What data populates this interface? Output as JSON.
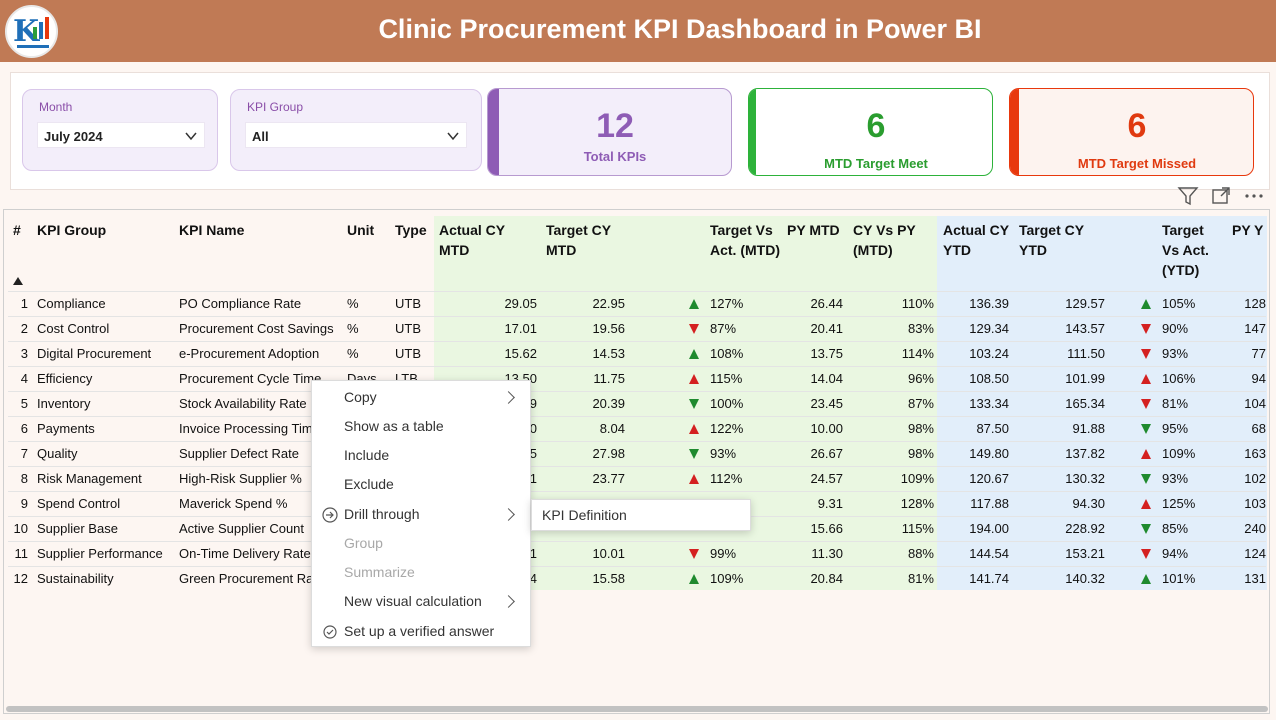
{
  "header": {
    "title": "Clinic Procurement KPI Dashboard in Power BI"
  },
  "slicers": [
    {
      "label": "Month",
      "value": "July 2024"
    },
    {
      "label": "KPI Group",
      "value": "All"
    }
  ],
  "cards": [
    {
      "value": "12",
      "label": "Total KPIs",
      "accent": "#8e5cb5"
    },
    {
      "value": "6",
      "label": "MTD Target Meet",
      "accent": "#2db23a"
    },
    {
      "value": "6",
      "label": "MTD Target Missed",
      "accent": "#e8380d"
    }
  ],
  "table": {
    "columns": [
      "#",
      "KPI Group",
      "KPI Name",
      "Unit",
      "Type",
      "Actual CY MTD",
      "Target CY MTD",
      "Target Vs Act. (MTD)",
      "PY MTD",
      "CY Vs PY (MTD)",
      "Actual CY YTD",
      "Target CY YTD",
      "Target Vs Act. (YTD)",
      "PY Y"
    ],
    "rows": [
      {
        "n": "1",
        "group": "Compliance",
        "name": "PO Compliance Rate",
        "unit": "%",
        "type": "UTB",
        "acm": "29.05",
        "tcm": "22.95",
        "mdir": "up",
        "mcol": "green",
        "tam": "127%",
        "pym": "26.44",
        "cvp": "110%",
        "acy": "136.39",
        "tcy": "129.57",
        "ydir": "up",
        "ycol": "green",
        "tay": "105%",
        "pyy": "128"
      },
      {
        "n": "2",
        "group": "Cost Control",
        "name": "Procurement Cost Savings",
        "unit": "%",
        "type": "UTB",
        "acm": "17.01",
        "tcm": "19.56",
        "mdir": "down",
        "mcol": "red",
        "tam": "87%",
        "pym": "20.41",
        "cvp": "83%",
        "acy": "129.34",
        "tcy": "143.57",
        "ydir": "down",
        "ycol": "red",
        "tay": "90%",
        "pyy": "147"
      },
      {
        "n": "3",
        "group": "Digital Procurement",
        "name": "e-Procurement Adoption",
        "unit": "%",
        "type": "UTB",
        "acm": "15.62",
        "tcm": "14.53",
        "mdir": "up",
        "mcol": "green",
        "tam": "108%",
        "pym": "13.75",
        "cvp": "114%",
        "acy": "103.24",
        "tcy": "111.50",
        "ydir": "down",
        "ycol": "red",
        "tay": "93%",
        "pyy": "77"
      },
      {
        "n": "4",
        "group": "Efficiency",
        "name": "Procurement Cycle Time",
        "unit": "Days",
        "type": "LTB",
        "acm": "13.50",
        "tcm": "11.75",
        "mdir": "up",
        "mcol": "red",
        "tam": "115%",
        "pym": "14.04",
        "cvp": "96%",
        "acy": "108.50",
        "tcy": "101.99",
        "ydir": "up",
        "ycol": "red",
        "tay": "106%",
        "pyy": "94"
      },
      {
        "n": "5",
        "group": "Inventory",
        "name": "Stock Availability Rate",
        "unit": "",
        "type": "",
        "acm": "9",
        "tcm": "20.39",
        "mdir": "down",
        "mcol": "green",
        "tam": "100%",
        "pym": "23.45",
        "cvp": "87%",
        "acy": "133.34",
        "tcy": "165.34",
        "ydir": "down",
        "ycol": "red",
        "tay": "81%",
        "pyy": "104"
      },
      {
        "n": "6",
        "group": "Payments",
        "name": "Invoice Processing Tim",
        "unit": "",
        "type": "",
        "acm": "0",
        "tcm": "8.04",
        "mdir": "up",
        "mcol": "red",
        "tam": "122%",
        "pym": "10.00",
        "cvp": "98%",
        "acy": "87.50",
        "tcy": "91.88",
        "ydir": "down",
        "ycol": "green",
        "tay": "95%",
        "pyy": "68"
      },
      {
        "n": "7",
        "group": "Quality",
        "name": "Supplier Defect Rate",
        "unit": "",
        "type": "",
        "acm": "5",
        "tcm": "27.98",
        "mdir": "down",
        "mcol": "green",
        "tam": "93%",
        "pym": "26.67",
        "cvp": "98%",
        "acy": "149.80",
        "tcy": "137.82",
        "ydir": "up",
        "ycol": "red",
        "tay": "109%",
        "pyy": "163"
      },
      {
        "n": "8",
        "group": "Risk Management",
        "name": "High-Risk Supplier %",
        "unit": "",
        "type": "",
        "acm": "1",
        "tcm": "23.77",
        "mdir": "up",
        "mcol": "red",
        "tam": "112%",
        "pym": "24.57",
        "cvp": "109%",
        "acy": "120.67",
        "tcy": "130.32",
        "ydir": "down",
        "ycol": "green",
        "tay": "93%",
        "pyy": "102"
      },
      {
        "n": "9",
        "group": "Spend Control",
        "name": "Maverick Spend %",
        "unit": "",
        "type": "",
        "acm": "",
        "tcm": "",
        "mdir": "",
        "mcol": "",
        "tam": "",
        "pym": "9.31",
        "cvp": "128%",
        "acy": "117.88",
        "tcy": "94.30",
        "ydir": "up",
        "ycol": "red",
        "tay": "125%",
        "pyy": "103"
      },
      {
        "n": "10",
        "group": "Supplier Base",
        "name": "Active Supplier Count",
        "unit": "",
        "type": "",
        "acm": "",
        "tcm": "",
        "mdir": "",
        "mcol": "",
        "tam": "",
        "pym": "15.66",
        "cvp": "115%",
        "acy": "194.00",
        "tcy": "228.92",
        "ydir": "down",
        "ycol": "green",
        "tay": "85%",
        "pyy": "240"
      },
      {
        "n": "11",
        "group": "Supplier Performance",
        "name": "On-Time Delivery Rate",
        "unit": "",
        "type": "",
        "acm": "1",
        "tcm": "10.01",
        "mdir": "down",
        "mcol": "red",
        "tam": "99%",
        "pym": "11.30",
        "cvp": "88%",
        "acy": "144.54",
        "tcy": "153.21",
        "ydir": "down",
        "ycol": "red",
        "tay": "94%",
        "pyy": "124"
      },
      {
        "n": "12",
        "group": "Sustainability",
        "name": "Green Procurement Ra",
        "unit": "",
        "type": "",
        "acm": "4",
        "tcm": "15.58",
        "mdir": "up",
        "mcol": "green",
        "tam": "109%",
        "pym": "20.84",
        "cvp": "81%",
        "acy": "141.74",
        "tcy": "140.32",
        "ydir": "up",
        "ycol": "green",
        "tay": "101%",
        "pyy": "131"
      }
    ]
  },
  "context_menu": {
    "items": [
      {
        "label": "Copy",
        "submenu": true,
        "disabled": false,
        "icon": ""
      },
      {
        "label": "Show as a table",
        "submenu": false,
        "disabled": false,
        "icon": ""
      },
      {
        "label": "Include",
        "submenu": false,
        "disabled": false,
        "icon": ""
      },
      {
        "label": "Exclude",
        "submenu": false,
        "disabled": false,
        "icon": ""
      },
      {
        "label": "Drill through",
        "submenu": true,
        "disabled": false,
        "icon": "drill-through-icon"
      },
      {
        "label": "Group",
        "submenu": false,
        "disabled": true,
        "icon": ""
      },
      {
        "label": "Summarize",
        "submenu": false,
        "disabled": true,
        "icon": ""
      },
      {
        "label": "New visual calculation",
        "submenu": true,
        "disabled": false,
        "icon": ""
      },
      {
        "label": "Set up a verified answer",
        "submenu": false,
        "disabled": false,
        "icon": "verified-check-icon"
      }
    ],
    "submenu_item": "KPI Definition"
  },
  "colors": {
    "green": "#1f8a2e",
    "red": "#d42020",
    "mtd_bg": "#eaf7e1",
    "ytd_bg": "#e2eefa"
  }
}
